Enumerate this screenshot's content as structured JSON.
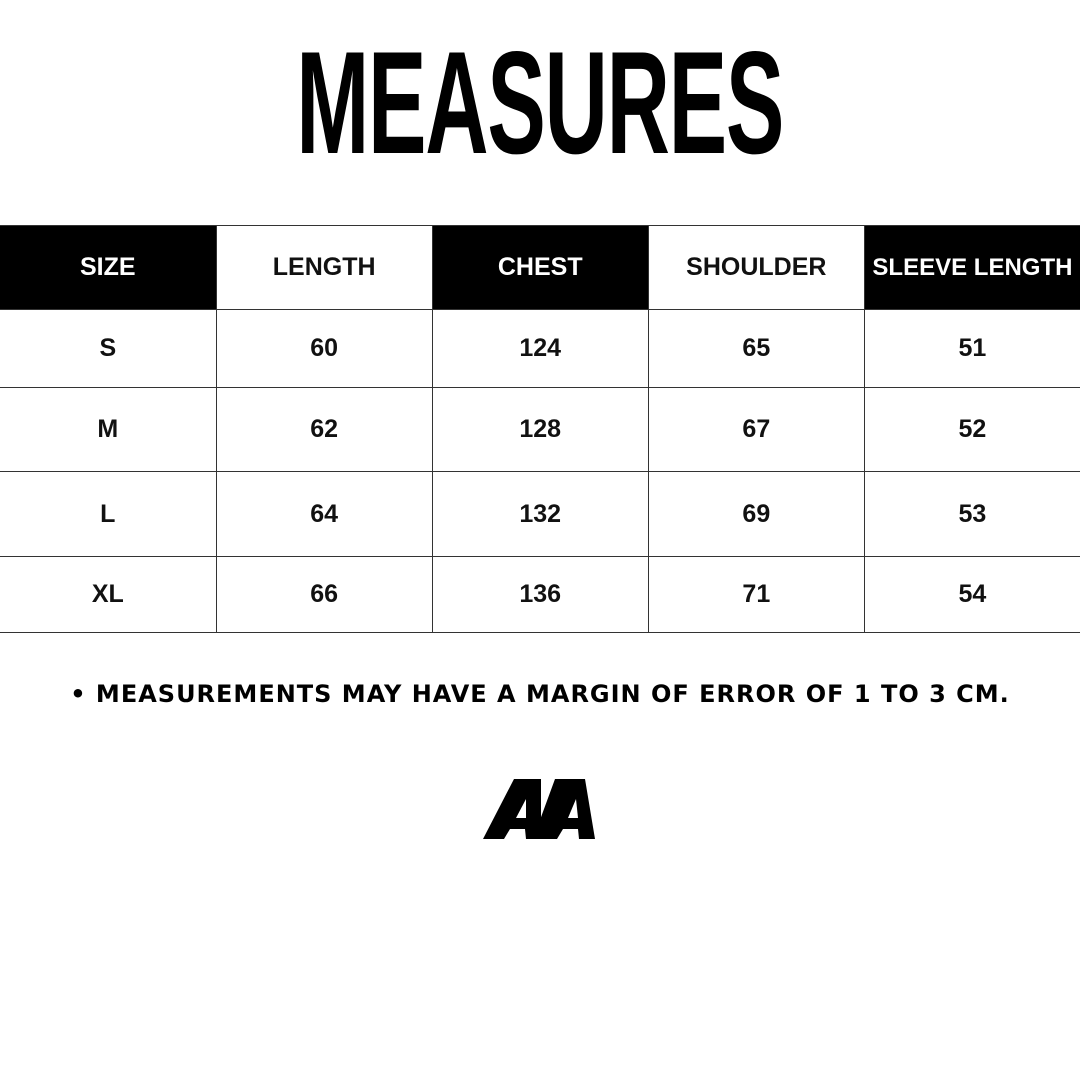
{
  "title": "MEASURES",
  "table": {
    "headers": [
      "SIZE",
      "LENGTH",
      "CHEST",
      "SHOULDER",
      "SLEEVE LENGTH"
    ],
    "rows": [
      [
        "S",
        "60",
        "124",
        "65",
        "51"
      ],
      [
        "M",
        "62",
        "128",
        "67",
        "52"
      ],
      [
        "L",
        "64",
        "132",
        "69",
        "53"
      ],
      [
        "XL",
        "66",
        "136",
        "71",
        "54"
      ]
    ]
  },
  "note": "• MEASUREMENTS MAY HAVE A MARGIN OF ERROR OF 1 TO 3 CM.",
  "logo": {
    "text": "AA"
  }
}
